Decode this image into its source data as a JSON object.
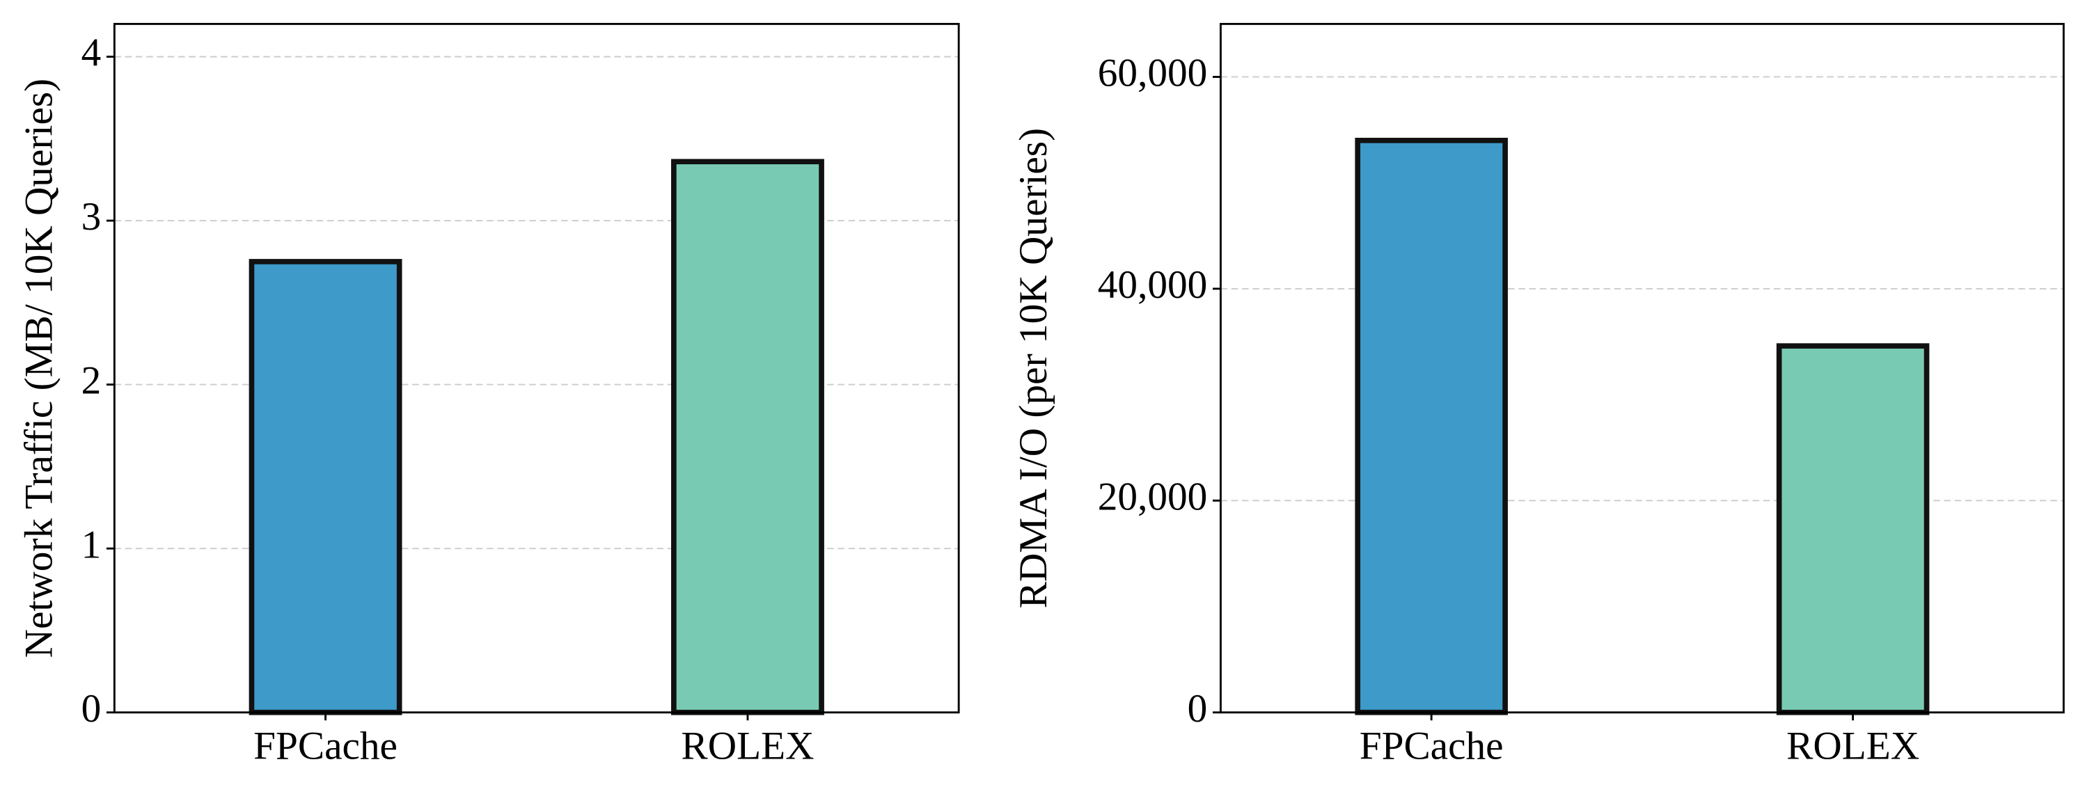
{
  "chart_data": [
    {
      "type": "bar",
      "y_label": "Network Traffic (MB/ 10K Queries)",
      "categories": [
        "FPCache",
        "ROLEX"
      ],
      "values": [
        2.75,
        3.36
      ],
      "colors": [
        "#3d9ac9",
        "#78cbb2"
      ],
      "ylim": [
        0,
        4.2
      ],
      "yticks": [
        0,
        1,
        2,
        3,
        4
      ],
      "grid": true
    },
    {
      "type": "bar",
      "y_label": "RDMA I/O (per 10K Queries)",
      "categories": [
        "FPCache",
        "ROLEX"
      ],
      "values": [
        54000,
        34600
      ],
      "colors": [
        "#3d9ac9",
        "#78cbb2"
      ],
      "ylim": [
        0,
        65000
      ],
      "yticks": [
        0,
        {
          "value": 20000,
          "label": "20,000"
        },
        {
          "value": 40000,
          "label": "40,000"
        },
        {
          "value": 60000,
          "label": "60,000"
        }
      ],
      "grid": true
    }
  ]
}
